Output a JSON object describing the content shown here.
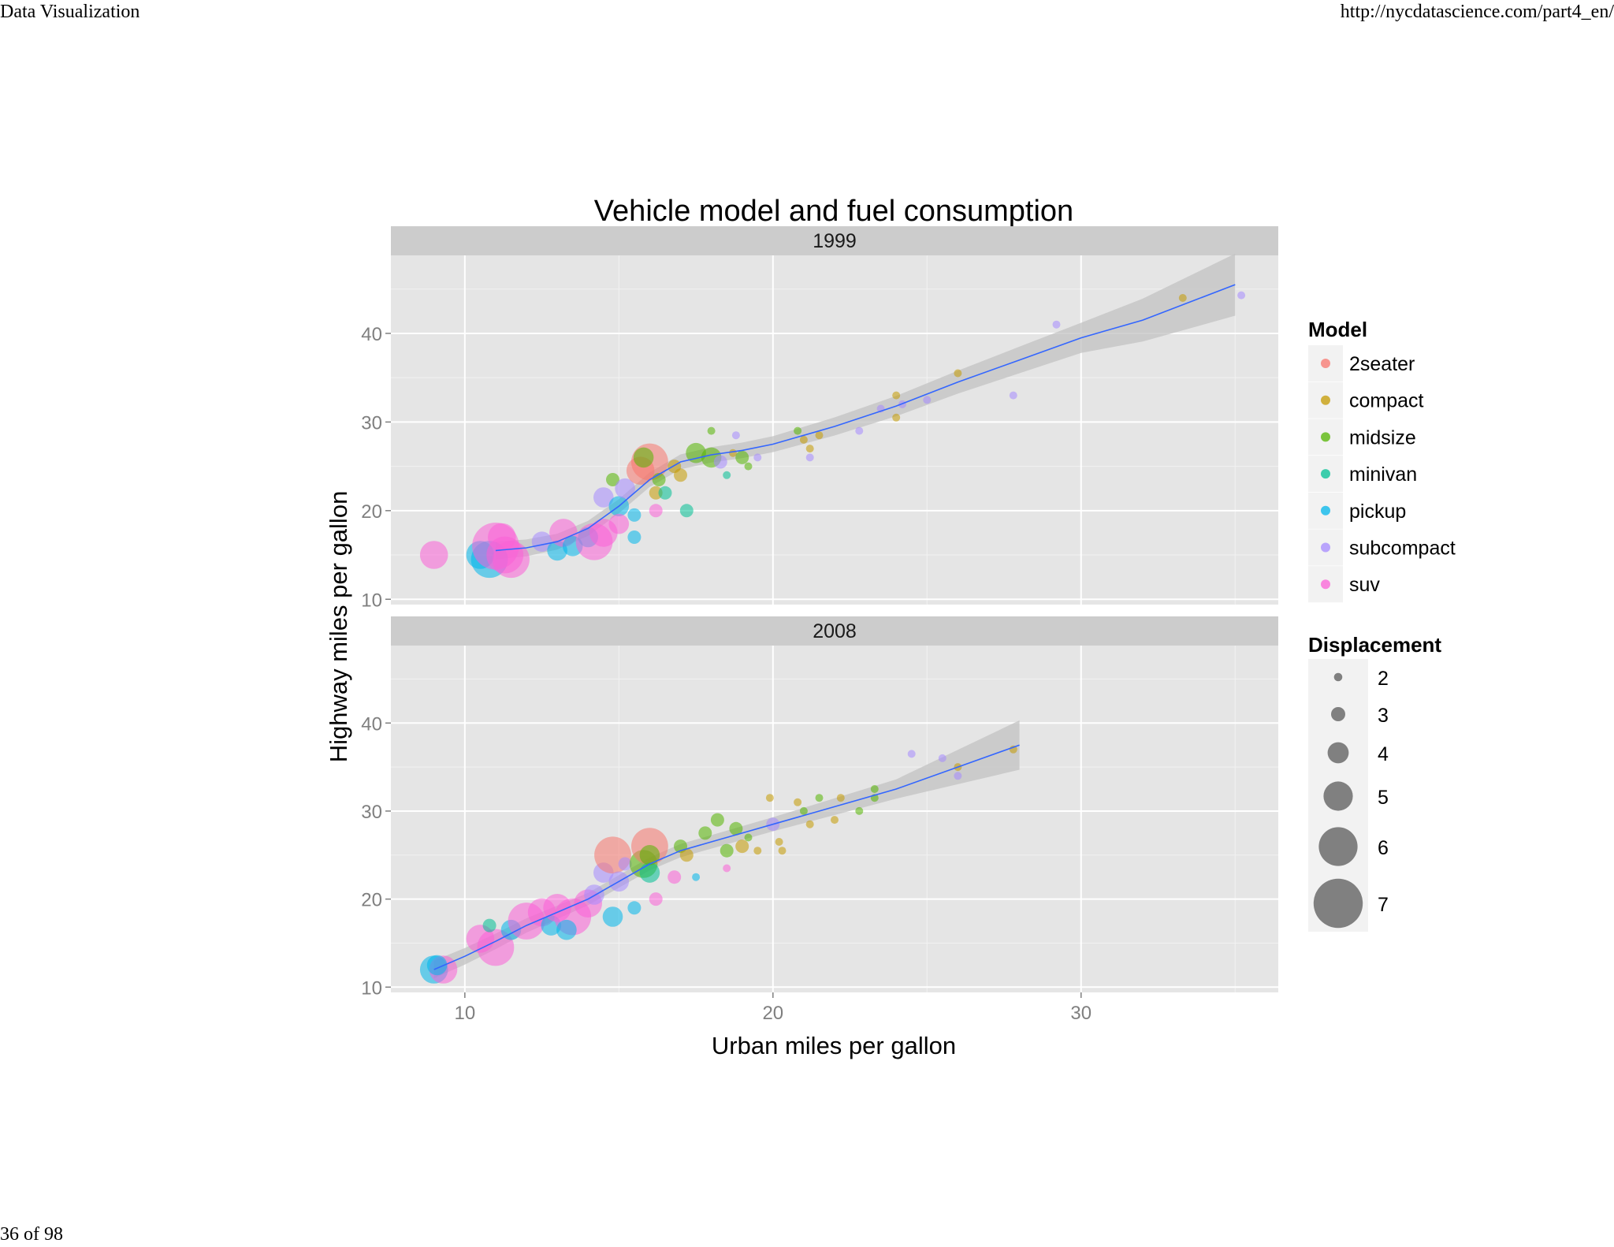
{
  "page": {
    "header_left": "Data Visualization",
    "header_right": "http://nycdatascience.com/part4_en/",
    "footer_page": "36 of 98"
  },
  "chart_data": {
    "type": "scatter",
    "title": "Vehicle model and fuel consumption",
    "xlabel": "Urban miles per gallon",
    "ylabel": "Highway miles per gallon",
    "xlim": [
      7.6,
      36.4
    ],
    "ylim": [
      9.4,
      48.8
    ],
    "x_ticks": [
      10,
      20,
      30
    ],
    "y_ticks": [
      10,
      20,
      30,
      40
    ],
    "grid": true,
    "background": "#e5e5e5",
    "facets": [
      "1999",
      "2008"
    ],
    "legend_placement": "right",
    "legend_color": {
      "title": "Model",
      "entries": [
        {
          "label": "2seater",
          "color": "#f8766d"
        },
        {
          "label": "compact",
          "color": "#c49a00"
        },
        {
          "label": "midsize",
          "color": "#53b400"
        },
        {
          "label": "minivan",
          "color": "#00c094"
        },
        {
          "label": "pickup",
          "color": "#00b6eb"
        },
        {
          "label": "subcompact",
          "color": "#a58aff"
        },
        {
          "label": "suv",
          "color": "#fb61d7"
        }
      ]
    },
    "legend_size": {
      "title": "Displacement",
      "entries": [
        {
          "label": "2",
          "value": 2
        },
        {
          "label": "3",
          "value": 3
        },
        {
          "label": "4",
          "value": 4
        },
        {
          "label": "5",
          "value": 5
        },
        {
          "label": "6",
          "value": 6
        },
        {
          "label": "7",
          "value": 7
        }
      ]
    },
    "smooth_color": "#3366ff",
    "band_color": "#c2c2c2",
    "panels": [
      {
        "facet": "1999",
        "smooth": [
          [
            11,
            15.5
          ],
          [
            12,
            15.8
          ],
          [
            13,
            16.5
          ],
          [
            14,
            18
          ],
          [
            15,
            20.5
          ],
          [
            16,
            23.5
          ],
          [
            17,
            25.5
          ],
          [
            18,
            26.3
          ],
          [
            19,
            26.8
          ],
          [
            20,
            27.5
          ],
          [
            22,
            29.5
          ],
          [
            24,
            31.8
          ],
          [
            26,
            34.5
          ],
          [
            28,
            37
          ],
          [
            30,
            39.5
          ],
          [
            32,
            41.5
          ],
          [
            35,
            45.5
          ]
        ],
        "band": [
          [
            11,
            1
          ],
          [
            15,
            0.8
          ],
          [
            20,
            0.9
          ],
          [
            25,
            1.2
          ],
          [
            30,
            1.7
          ],
          [
            35,
            3.5
          ]
        ],
        "points": [
          {
            "cty": 9,
            "hwy": 15,
            "class": "suv",
            "displ": 5
          },
          {
            "cty": 10.5,
            "hwy": 15,
            "class": "pickup",
            "displ": 5
          },
          {
            "cty": 10.8,
            "hwy": 14.5,
            "class": "pickup",
            "displ": 6
          },
          {
            "cty": 11,
            "hwy": 16,
            "class": "suv",
            "displ": 7
          },
          {
            "cty": 11.3,
            "hwy": 15,
            "class": "suv",
            "displ": 6
          },
          {
            "cty": 11.5,
            "hwy": 14.5,
            "class": "suv",
            "displ": 6
          },
          {
            "cty": 11.2,
            "hwy": 17,
            "class": "suv",
            "displ": 5
          },
          {
            "cty": 12.5,
            "hwy": 16.5,
            "class": "subcompact",
            "displ": 4
          },
          {
            "cty": 13,
            "hwy": 15.5,
            "class": "pickup",
            "displ": 4
          },
          {
            "cty": 13.2,
            "hwy": 17.5,
            "class": "suv",
            "displ": 5
          },
          {
            "cty": 13.5,
            "hwy": 16,
            "class": "pickup",
            "displ": 4
          },
          {
            "cty": 14,
            "hwy": 17,
            "class": "pickup",
            "displ": 4
          },
          {
            "cty": 14.2,
            "hwy": 16.5,
            "class": "suv",
            "displ": 6
          },
          {
            "cty": 14.5,
            "hwy": 17.5,
            "class": "suv",
            "displ": 5
          },
          {
            "cty": 14.5,
            "hwy": 21.5,
            "class": "subcompact",
            "displ": 4
          },
          {
            "cty": 14.8,
            "hwy": 23.5,
            "class": "midsize",
            "displ": 3
          },
          {
            "cty": 15,
            "hwy": 20.5,
            "class": "pickup",
            "displ": 4
          },
          {
            "cty": 15,
            "hwy": 18.5,
            "class": "suv",
            "displ": 4
          },
          {
            "cty": 15.2,
            "hwy": 22.5,
            "class": "subcompact",
            "displ": 4
          },
          {
            "cty": 15.5,
            "hwy": 19.5,
            "class": "pickup",
            "displ": 3
          },
          {
            "cty": 15.5,
            "hwy": 17,
            "class": "pickup",
            "displ": 3
          },
          {
            "cty": 15.7,
            "hwy": 24.5,
            "class": "2seater",
            "displ": 5
          },
          {
            "cty": 16,
            "hwy": 25.5,
            "class": "2seater",
            "displ": 6
          },
          {
            "cty": 15.8,
            "hwy": 26,
            "class": "midsize",
            "displ": 4
          },
          {
            "cty": 16.2,
            "hwy": 22,
            "class": "compact",
            "displ": 3
          },
          {
            "cty": 16.2,
            "hwy": 20,
            "class": "suv",
            "displ": 3
          },
          {
            "cty": 16.5,
            "hwy": 22,
            "class": "minivan",
            "displ": 3
          },
          {
            "cty": 16.3,
            "hwy": 23.5,
            "class": "midsize",
            "displ": 3
          },
          {
            "cty": 16.8,
            "hwy": 25,
            "class": "compact",
            "displ": 3
          },
          {
            "cty": 17,
            "hwy": 24,
            "class": "compact",
            "displ": 3
          },
          {
            "cty": 17.2,
            "hwy": 20,
            "class": "minivan",
            "displ": 3
          },
          {
            "cty": 17.5,
            "hwy": 26.5,
            "class": "midsize",
            "displ": 4
          },
          {
            "cty": 18,
            "hwy": 26,
            "class": "midsize",
            "displ": 4
          },
          {
            "cty": 18,
            "hwy": 29,
            "class": "midsize",
            "displ": 2
          },
          {
            "cty": 18.3,
            "hwy": 25.5,
            "class": "subcompact",
            "displ": 3
          },
          {
            "cty": 18.5,
            "hwy": 24,
            "class": "minivan",
            "displ": 2
          },
          {
            "cty": 18.7,
            "hwy": 26.5,
            "class": "compact",
            "displ": 2
          },
          {
            "cty": 18.8,
            "hwy": 28.5,
            "class": "subcompact",
            "displ": 2
          },
          {
            "cty": 19,
            "hwy": 26,
            "class": "midsize",
            "displ": 3
          },
          {
            "cty": 19.2,
            "hwy": 25,
            "class": "midsize",
            "displ": 2
          },
          {
            "cty": 19.5,
            "hwy": 26,
            "class": "subcompact",
            "displ": 2
          },
          {
            "cty": 20.8,
            "hwy": 29,
            "class": "midsize",
            "displ": 2
          },
          {
            "cty": 21,
            "hwy": 28,
            "class": "compact",
            "displ": 2
          },
          {
            "cty": 21.2,
            "hwy": 27,
            "class": "compact",
            "displ": 2
          },
          {
            "cty": 21.2,
            "hwy": 26,
            "class": "subcompact",
            "displ": 2
          },
          {
            "cty": 21.5,
            "hwy": 28.5,
            "class": "compact",
            "displ": 2
          },
          {
            "cty": 22.8,
            "hwy": 29,
            "class": "subcompact",
            "displ": 2
          },
          {
            "cty": 23.5,
            "hwy": 31.5,
            "class": "subcompact",
            "displ": 2
          },
          {
            "cty": 24,
            "hwy": 33,
            "class": "compact",
            "displ": 2
          },
          {
            "cty": 24,
            "hwy": 30.5,
            "class": "compact",
            "displ": 2
          },
          {
            "cty": 24.2,
            "hwy": 32,
            "class": "subcompact",
            "displ": 2
          },
          {
            "cty": 25,
            "hwy": 32.5,
            "class": "subcompact",
            "displ": 2
          },
          {
            "cty": 26,
            "hwy": 35.5,
            "class": "compact",
            "displ": 2
          },
          {
            "cty": 27.8,
            "hwy": 33,
            "class": "subcompact",
            "displ": 2
          },
          {
            "cty": 29.2,
            "hwy": 41,
            "class": "subcompact",
            "displ": 2
          },
          {
            "cty": 33.3,
            "hwy": 44,
            "class": "compact",
            "displ": 2
          },
          {
            "cty": 35.2,
            "hwy": 44.3,
            "class": "subcompact",
            "displ": 2
          }
        ]
      },
      {
        "facet": "2008",
        "smooth": [
          [
            9,
            12
          ],
          [
            10,
            13.5
          ],
          [
            11,
            15.2
          ],
          [
            12,
            17
          ],
          [
            13,
            18.5
          ],
          [
            14,
            20
          ],
          [
            15,
            22
          ],
          [
            16,
            24
          ],
          [
            17,
            25.5
          ],
          [
            18,
            26.5
          ],
          [
            19,
            27.5
          ],
          [
            20,
            28.5
          ],
          [
            22,
            30.5
          ],
          [
            24,
            32.5
          ],
          [
            26,
            35
          ],
          [
            28,
            37.5
          ]
        ],
        "band": [
          [
            9,
            1
          ],
          [
            14,
            0.7
          ],
          [
            20,
            0.8
          ],
          [
            24,
            1.1
          ],
          [
            28,
            2.8
          ]
        ],
        "points": [
          {
            "cty": 9,
            "hwy": 12,
            "class": "pickup",
            "displ": 5
          },
          {
            "cty": 9.3,
            "hwy": 12,
            "class": "suv",
            "displ": 5
          },
          {
            "cty": 9.1,
            "hwy": 12.5,
            "class": "pickup",
            "displ": 4
          },
          {
            "cty": 10.5,
            "hwy": 15.5,
            "class": "suv",
            "displ": 5
          },
          {
            "cty": 11,
            "hwy": 14.5,
            "class": "suv",
            "displ": 6
          },
          {
            "cty": 10.8,
            "hwy": 17,
            "class": "minivan",
            "displ": 3
          },
          {
            "cty": 11.5,
            "hwy": 16.5,
            "class": "pickup",
            "displ": 4
          },
          {
            "cty": 12,
            "hwy": 17.5,
            "class": "suv",
            "displ": 6
          },
          {
            "cty": 12.5,
            "hwy": 18.5,
            "class": "suv",
            "displ": 5
          },
          {
            "cty": 12.8,
            "hwy": 17,
            "class": "pickup",
            "displ": 4
          },
          {
            "cty": 13,
            "hwy": 19,
            "class": "suv",
            "displ": 5
          },
          {
            "cty": 13.5,
            "hwy": 18,
            "class": "suv",
            "displ": 6
          },
          {
            "cty": 13.3,
            "hwy": 16.5,
            "class": "pickup",
            "displ": 4
          },
          {
            "cty": 14,
            "hwy": 19.5,
            "class": "suv",
            "displ": 5
          },
          {
            "cty": 14.2,
            "hwy": 20.5,
            "class": "subcompact",
            "displ": 4
          },
          {
            "cty": 14.5,
            "hwy": 23,
            "class": "subcompact",
            "displ": 4
          },
          {
            "cty": 14.8,
            "hwy": 18,
            "class": "pickup",
            "displ": 4
          },
          {
            "cty": 14.8,
            "hwy": 25,
            "class": "2seater",
            "displ": 6
          },
          {
            "cty": 15,
            "hwy": 22,
            "class": "subcompact",
            "displ": 4
          },
          {
            "cty": 15.2,
            "hwy": 24,
            "class": "subcompact",
            "displ": 3
          },
          {
            "cty": 15.5,
            "hwy": 19,
            "class": "pickup",
            "displ": 3
          },
          {
            "cty": 15.8,
            "hwy": 24,
            "class": "midsize",
            "displ": 5
          },
          {
            "cty": 16,
            "hwy": 26,
            "class": "2seater",
            "displ": 6
          },
          {
            "cty": 16,
            "hwy": 23,
            "class": "minivan",
            "displ": 4
          },
          {
            "cty": 16.2,
            "hwy": 20,
            "class": "suv",
            "displ": 3
          },
          {
            "cty": 16,
            "hwy": 25,
            "class": "midsize",
            "displ": 4
          },
          {
            "cty": 16.8,
            "hwy": 22.5,
            "class": "suv",
            "displ": 3
          },
          {
            "cty": 17,
            "hwy": 26,
            "class": "midsize",
            "displ": 3
          },
          {
            "cty": 17.2,
            "hwy": 25,
            "class": "compact",
            "displ": 3
          },
          {
            "cty": 17.5,
            "hwy": 22.5,
            "class": "pickup",
            "displ": 2
          },
          {
            "cty": 17.8,
            "hwy": 27.5,
            "class": "midsize",
            "displ": 3
          },
          {
            "cty": 18.2,
            "hwy": 29,
            "class": "midsize",
            "displ": 3
          },
          {
            "cty": 18.5,
            "hwy": 23.5,
            "class": "suv",
            "displ": 2
          },
          {
            "cty": 18.5,
            "hwy": 25.5,
            "class": "midsize",
            "displ": 3
          },
          {
            "cty": 18.8,
            "hwy": 28,
            "class": "midsize",
            "displ": 3
          },
          {
            "cty": 19,
            "hwy": 26,
            "class": "compact",
            "displ": 3
          },
          {
            "cty": 19.2,
            "hwy": 27,
            "class": "midsize",
            "displ": 2
          },
          {
            "cty": 19.5,
            "hwy": 25.5,
            "class": "compact",
            "displ": 2
          },
          {
            "cty": 20,
            "hwy": 28.5,
            "class": "subcompact",
            "displ": 3
          },
          {
            "cty": 19.9,
            "hwy": 31.5,
            "class": "compact",
            "displ": 2
          },
          {
            "cty": 20.2,
            "hwy": 26.5,
            "class": "compact",
            "displ": 2
          },
          {
            "cty": 20.3,
            "hwy": 25.5,
            "class": "compact",
            "displ": 2
          },
          {
            "cty": 20.8,
            "hwy": 31,
            "class": "compact",
            "displ": 2
          },
          {
            "cty": 21,
            "hwy": 30,
            "class": "midsize",
            "displ": 2
          },
          {
            "cty": 21.2,
            "hwy": 28.5,
            "class": "compact",
            "displ": 2
          },
          {
            "cty": 21.5,
            "hwy": 31.5,
            "class": "midsize",
            "displ": 2
          },
          {
            "cty": 22,
            "hwy": 29,
            "class": "compact",
            "displ": 2
          },
          {
            "cty": 22.2,
            "hwy": 31.5,
            "class": "compact",
            "displ": 2
          },
          {
            "cty": 22.8,
            "hwy": 30,
            "class": "midsize",
            "displ": 2
          },
          {
            "cty": 23.3,
            "hwy": 31.5,
            "class": "midsize",
            "displ": 2
          },
          {
            "cty": 23.3,
            "hwy": 32.5,
            "class": "midsize",
            "displ": 2
          },
          {
            "cty": 24.5,
            "hwy": 36.5,
            "class": "subcompact",
            "displ": 2
          },
          {
            "cty": 25.5,
            "hwy": 36,
            "class": "subcompact",
            "displ": 2
          },
          {
            "cty": 26,
            "hwy": 35,
            "class": "compact",
            "displ": 2
          },
          {
            "cty": 26,
            "hwy": 34,
            "class": "subcompact",
            "displ": 2
          },
          {
            "cty": 27.8,
            "hwy": 37,
            "class": "compact",
            "displ": 2
          }
        ]
      }
    ]
  }
}
